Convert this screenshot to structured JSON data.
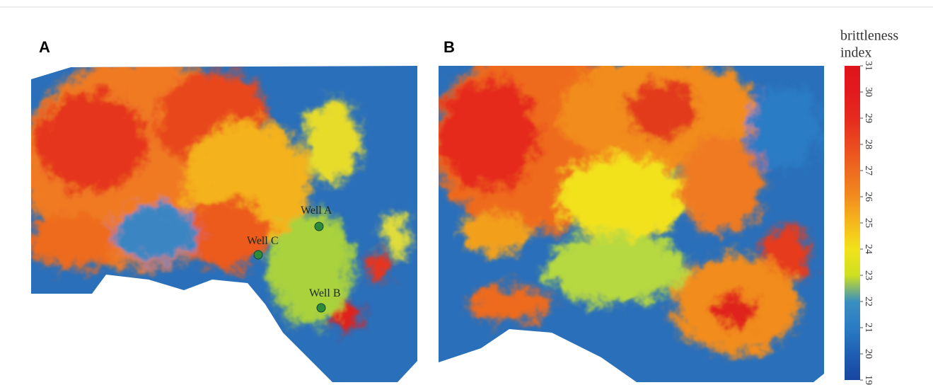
{
  "panels": [
    {
      "label": "A",
      "wells": [
        {
          "name": "Well A"
        },
        {
          "name": "Well C"
        },
        {
          "name": "Well B"
        }
      ]
    },
    {
      "label": "B"
    }
  ],
  "colorbar": {
    "title": [
      "brittleness",
      "index"
    ],
    "lim": [
      19,
      31
    ],
    "ticks": [
      19,
      20,
      21,
      22,
      23,
      24,
      25,
      26,
      27,
      28,
      29,
      30,
      31
    ],
    "colors": [
      "#1746a0",
      "#1f5fb2",
      "#2a7cc4",
      "#3a8fc0",
      "#cfe020",
      "#f2e21a",
      "#f5b81c",
      "#f28c1e",
      "#ee6a1f",
      "#ea4a1f",
      "#e52b1f",
      "#e21a1e",
      "#e0141c"
    ]
  }
}
